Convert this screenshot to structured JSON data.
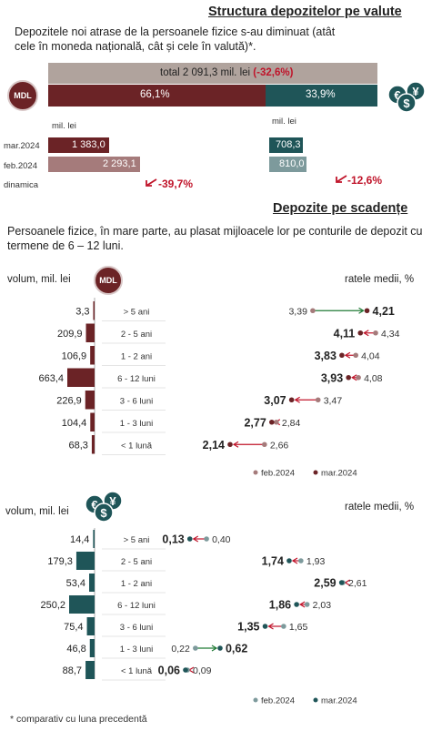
{
  "section1": {
    "title": "Structura depozitelor pe valute",
    "subtitle": "Depozitele noi atrase de la persoanele fizice s-au diminuat (atât cele în moneda națională, cât și cele în valută)*.",
    "total_text": "total 2 091,3 mil. lei",
    "total_change": "(-32,6%)",
    "mdl_badge": "MDL",
    "share_mdl": "66,1%",
    "share_fx": "33,9%",
    "share_mdl_value": 66.1,
    "unit_left": "mil. lei",
    "unit_right": "mil. lei",
    "row_labels": [
      "mar.2024",
      "feb.2024",
      "dinamica"
    ],
    "mdl_values": [
      "1 383,0",
      "2 293,1"
    ],
    "mdl_numbers": [
      1383.0,
      2293.1
    ],
    "fx_values": [
      "708,3",
      "810,0"
    ],
    "fx_numbers": [
      708.3,
      810.0
    ],
    "mdl_change": "-39,7%",
    "fx_change": "-12,6%"
  },
  "section2": {
    "title": "Depozite pe scadențe",
    "subtitle": "Persoanele fizice, în mare parte, au plasat mijloacele lor pe conturile de depozit cu termene de 6 – 12 luni.",
    "left_label_mdl": "volum, mil. lei",
    "right_label_mdl": "ratele medii, %",
    "left_label_fx": "volum, mil. lei",
    "right_label_fx": "ratele medii, %",
    "legend_feb": "feb.2024",
    "legend_mar": "mar.2024",
    "footnote": "* comparativ cu luna precedentă"
  },
  "chart_data": [
    {
      "type": "bar",
      "title": "Structura depozitelor pe valute",
      "categories": [
        "mar.2024",
        "feb.2024"
      ],
      "series": [
        {
          "name": "MDL",
          "values": [
            1383.0,
            2293.1
          ]
        },
        {
          "name": "valută",
          "values": [
            708.3,
            810.0
          ]
        }
      ],
      "total": 2091.3,
      "total_change_pct": -32.6,
      "shares_pct": {
        "MDL": 66.1,
        "valută": 33.9
      },
      "dinamica_pct": {
        "MDL": -39.7,
        "valută": -12.6
      },
      "ylabel": "mil. lei"
    },
    {
      "type": "bar",
      "currency": "MDL",
      "categories": [
        "> 5 ani",
        "2 - 5 ani",
        "1 - 2 ani",
        "6 - 12 luni",
        "3 - 6 luni",
        "1 - 3 luni",
        "< 1 lună"
      ],
      "volume_labels": [
        "3,3",
        "209,9",
        "106,9",
        "663,4",
        "226,9",
        "104,4",
        "68,3"
      ],
      "volume": [
        3.3,
        209.9,
        106.9,
        663.4,
        226.9,
        104.4,
        68.3
      ],
      "highlight_index": 3,
      "xlabel": "volum, mil. lei",
      "rates_label": "ratele medii, %",
      "rates_feb_labels": [
        "3,39",
        "4,34",
        "4,04",
        "4,08",
        "3,47",
        "2,84",
        "2,66"
      ],
      "rates_mar_labels": [
        "4,21",
        "4,11",
        "3,83",
        "3,93",
        "3,07",
        "2,77",
        "2,14"
      ],
      "rates_feb": [
        3.39,
        4.34,
        4.04,
        4.08,
        3.47,
        2.84,
        2.66
      ],
      "rates_mar": [
        4.21,
        4.11,
        3.83,
        3.93,
        3.07,
        2.77,
        2.14
      ],
      "series": [
        {
          "name": "feb.2024"
        },
        {
          "name": "mar.2024"
        }
      ]
    },
    {
      "type": "bar",
      "currency": "valută",
      "categories": [
        "> 5 ani",
        "2 - 5 ani",
        "1 - 2 ani",
        "6 - 12 luni",
        "3 - 6 luni",
        "1 - 3 luni",
        "< 1 lună"
      ],
      "volume_labels": [
        "14,4",
        "179,3",
        "53,4",
        "250,2",
        "75,4",
        "46,8",
        "88,7"
      ],
      "volume": [
        14.4,
        179.3,
        53.4,
        250.2,
        75.4,
        46.8,
        88.7
      ],
      "xlabel": "volum, mil. lei",
      "rates_label": "ratele medii, %",
      "rates_feb_labels": [
        "0,40",
        "1,93",
        "2,61",
        "2,03",
        "1,65",
        "0,22",
        "0,09"
      ],
      "rates_mar_labels": [
        "0,13",
        "1,74",
        "2,59",
        "1,86",
        "1,35",
        "0,62",
        "0,06"
      ],
      "rates_feb": [
        0.4,
        1.93,
        2.61,
        2.03,
        1.65,
        0.22,
        0.09
      ],
      "rates_mar": [
        0.13,
        1.74,
        2.59,
        1.86,
        1.35,
        0.62,
        0.06
      ],
      "series": [
        {
          "name": "feb.2024"
        },
        {
          "name": "mar.2024"
        }
      ]
    }
  ],
  "colors": {
    "mdl_dark": "#6b2326",
    "mdl_light": "#a57b7b",
    "fx_dark": "#1f5558",
    "fx_light": "#7d9a9c",
    "total_bar": "#b0a39d",
    "red": "#c0142a",
    "arrow_up": "#1f7a35",
    "grey": "#555555"
  }
}
